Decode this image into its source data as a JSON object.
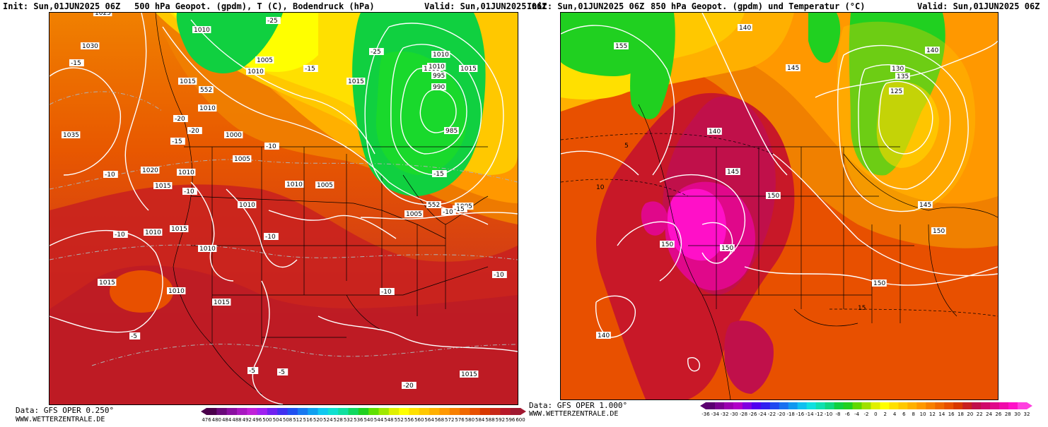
{
  "panel_left": {
    "init": "Init: Sun,01JUN2025 06Z",
    "title": "500 hPa Geopot. (gpdm), T (C), Bodendruck (hPa)",
    "valid": "Valid: Sun,01JUN2025 06Z",
    "source": "Data: GFS OPER 0.250°",
    "url": "WWW.WETTERZENTRALE.DE",
    "pressure_labels": [
      "1025",
      "1030",
      "1035",
      "1010",
      "1005",
      "1015",
      "1010",
      "1000",
      "1005",
      "1020",
      "1010",
      "1015",
      "1010",
      "1010",
      "1015",
      "1010",
      "1015",
      "1010",
      "1015",
      "1010",
      "1005",
      "1010",
      "1015",
      "1000",
      "995",
      "990",
      "985",
      "1010",
      "1005",
      "1015",
      "1010",
      "1005",
      "1015"
    ],
    "temp_labels": [
      "-15",
      "-25",
      "-20",
      "-15",
      "-25",
      "-20",
      "-15",
      "-10",
      "-10",
      "-10",
      "-10",
      "-10",
      "-10",
      "-10",
      "-5",
      "-5",
      "-5",
      "-20",
      "-15",
      "-10",
      "-15"
    ],
    "geopot_labels": [
      "552",
      "552"
    ],
    "colorbar_ticks": [
      "476",
      "480",
      "484",
      "488",
      "492",
      "496",
      "500",
      "504",
      "508",
      "512",
      "516",
      "520",
      "524",
      "528",
      "532",
      "536",
      "540",
      "544",
      "548",
      "552",
      "556",
      "560",
      "564",
      "568",
      "572",
      "576",
      "580",
      "584",
      "588",
      "592",
      "596",
      "600"
    ],
    "colorbar_colors": [
      "#4a004a",
      "#6a0a7a",
      "#8a10a0",
      "#a818c0",
      "#c020d8",
      "#a020f0",
      "#7020f0",
      "#4030f0",
      "#2050f0",
      "#1878f0",
      "#10a0f0",
      "#10c8f0",
      "#10e0d0",
      "#10e0a0",
      "#10d860",
      "#20d020",
      "#60e000",
      "#a0e800",
      "#e0f000",
      "#ffff00",
      "#ffe000",
      "#ffc800",
      "#ffb000",
      "#ff9800",
      "#f88000",
      "#f06800",
      "#e85000",
      "#d83800",
      "#c82818",
      "#b81828",
      "#a01830"
    ]
  },
  "panel_right": {
    "init": "Init: Sun,01JUN2025 06Z",
    "title": "850 hPa Geopot. (gpdm) und Temperatur (°C)",
    "valid": "Valid: Sun,01JUN2025 06Z",
    "source": "Data: GFS OPER 1.000°",
    "url": "WWW.WETTERZENTRALE.DE",
    "geopot_labels": [
      "140",
      "155",
      "145",
      "140",
      "145",
      "130",
      "125",
      "135",
      "140",
      "145",
      "150",
      "150",
      "150",
      "150",
      "150",
      "140"
    ],
    "temp_labels": [
      "5",
      "10",
      "15"
    ],
    "colorbar_ticks": [
      "-36",
      "-34",
      "-32",
      "-30",
      "-28",
      "-26",
      "-24",
      "-22",
      "-20",
      "-18",
      "-16",
      "-14",
      "-12",
      "-10",
      "-8",
      "-6",
      "-4",
      "-2",
      "0",
      "2",
      "4",
      "6",
      "8",
      "10",
      "12",
      "14",
      "16",
      "18",
      "20",
      "22",
      "24",
      "26",
      "28",
      "30",
      "32"
    ],
    "colorbar_colors": [
      "#5a0070",
      "#7a0090",
      "#9a00b0",
      "#b000c8",
      "#8000e0",
      "#5000f0",
      "#3020f0",
      "#2048f0",
      "#1870f0",
      "#1098f0",
      "#10c0f0",
      "#10e0e0",
      "#10e0b0",
      "#10d880",
      "#10d040",
      "#20d020",
      "#60d800",
      "#a0e000",
      "#e0f000",
      "#ffff00",
      "#ffe000",
      "#ffc800",
      "#ffb000",
      "#ff9800",
      "#f88000",
      "#f06800",
      "#e85000",
      "#d83800",
      "#c82020",
      "#c0104a",
      "#d0086a",
      "#e0088a",
      "#f00aaa",
      "#ff10c8",
      "#ff40e0"
    ]
  }
}
